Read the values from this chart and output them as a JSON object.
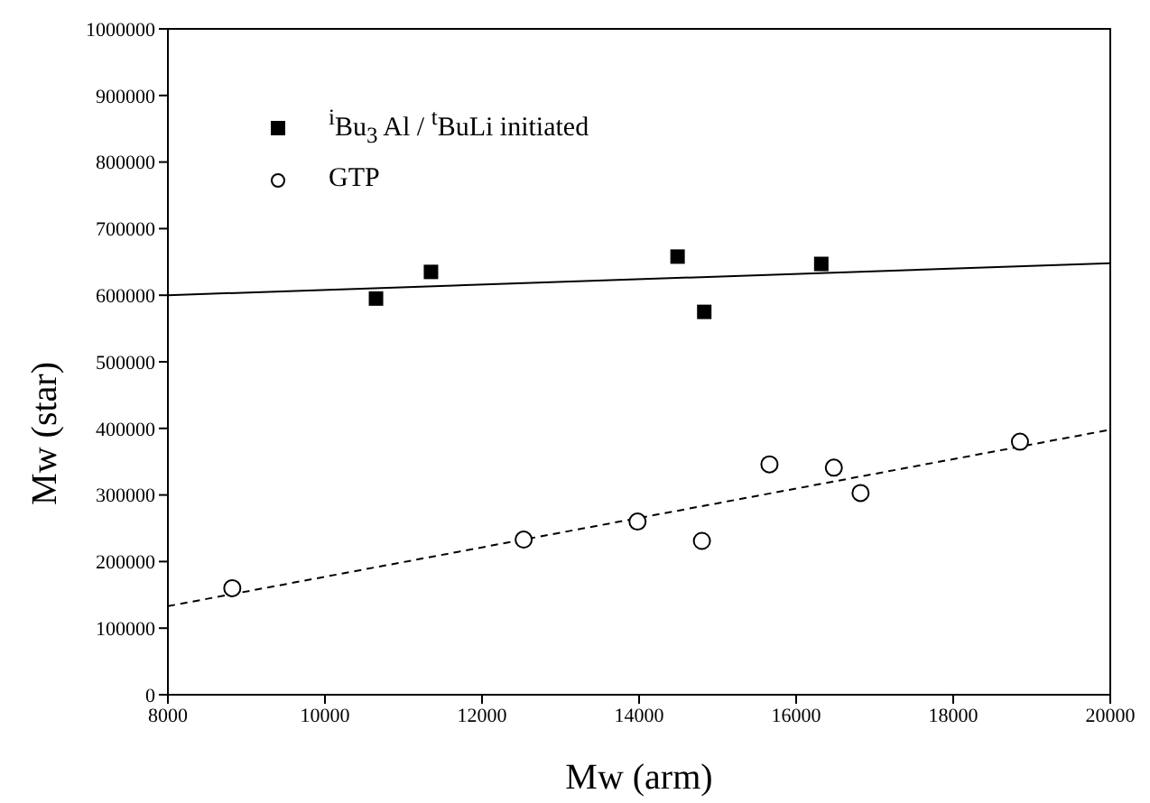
{
  "chart_data": {
    "type": "scatter",
    "xlabel": "Mw (arm)",
    "ylabel": "Mw (star)",
    "xlim": [
      8000,
      20000
    ],
    "xticks": [
      8000,
      10000,
      12000,
      14000,
      16000,
      18000,
      20000
    ],
    "ylim": [
      0,
      1000000
    ],
    "yticks": [
      0,
      100000,
      200000,
      300000,
      400000,
      500000,
      600000,
      700000,
      800000,
      900000,
      1000000
    ],
    "grid": false,
    "legend": "top left",
    "series": [
      {
        "name": "$^{i}$Bu$_{3}$ Al / $^{t}$BuLi initiated",
        "marker": "square",
        "color": "#000000",
        "x": [
          10650,
          11350,
          14490,
          14830,
          16320
        ],
        "values": [
          595000,
          635000,
          658000,
          575000,
          647000
        ]
      },
      {
        "name": "GTP",
        "marker": "circle",
        "color": "#000000",
        "x": [
          8820,
          12530,
          13980,
          14800,
          15660,
          16480,
          16820,
          18850
        ],
        "values": [
          160000,
          233000,
          260000,
          231000,
          346000,
          341000,
          303000,
          380000
        ]
      },
      {
        "type": "line",
        "marker": "none",
        "line_style": "solid",
        "color": "#000000",
        "x": [
          8000,
          20000
        ],
        "values": [
          600000,
          648000
        ]
      },
      {
        "type": "line",
        "marker": "none",
        "line_style": "dashed",
        "color": "#000000",
        "x": [
          8000,
          20000
        ],
        "values": [
          133000,
          398000
        ]
      }
    ]
  }
}
